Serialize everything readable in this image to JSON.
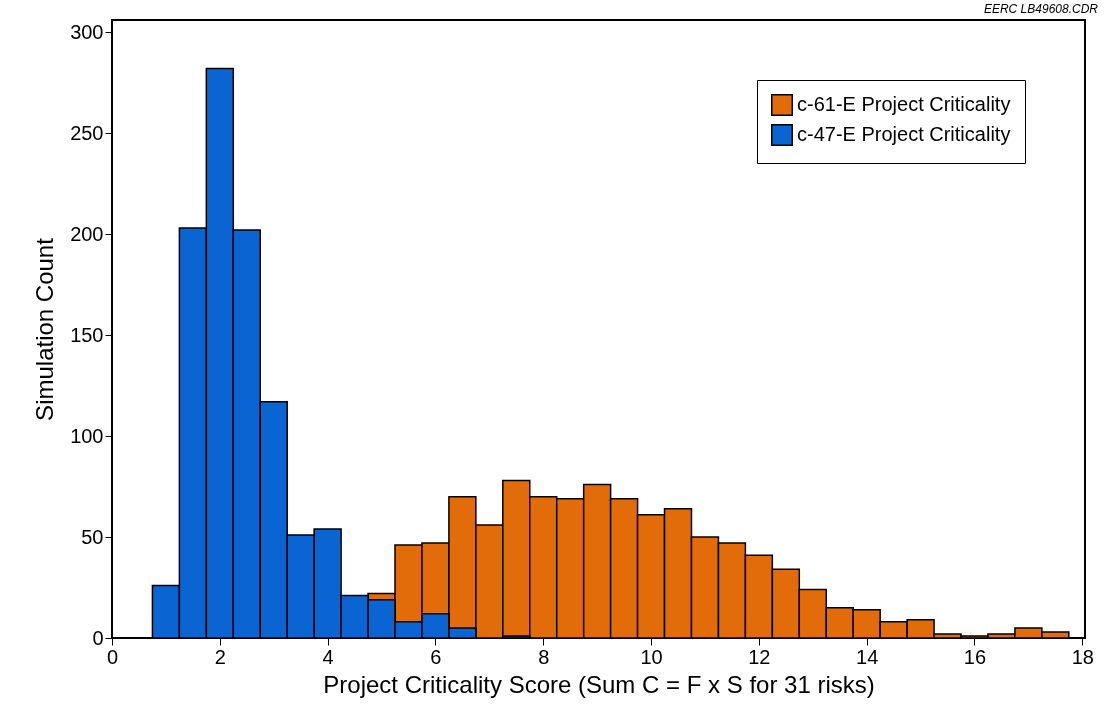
{
  "chart_data": {
    "type": "histogram",
    "xlabel": "Project Criticality Score (Sum C = F x S for 31 risks)",
    "ylabel": "Simulation Count",
    "annotations": [
      "EERC LB49608.CDR"
    ],
    "bins": [
      0.75,
      1.25,
      1.75,
      2.25,
      2.75,
      3.25,
      3.75,
      4.25,
      4.75,
      5.25,
      5.75,
      6.25,
      6.75,
      7.25,
      7.75,
      8.25,
      8.75,
      9.25,
      9.75,
      10.25,
      10.75,
      11.25,
      11.75,
      12.25,
      12.75,
      13.25,
      13.75,
      14.25,
      14.75,
      15.25,
      15.75,
      16.25,
      16.75,
      17.25,
      17.75
    ],
    "series": [
      {
        "name": "c-61-E Project Criticality",
        "color": "#e36c0a",
        "values": [
          null,
          null,
          null,
          null,
          null,
          null,
          null,
          null,
          22,
          46,
          47,
          70,
          56,
          78,
          70,
          69,
          76,
          69,
          61,
          64,
          50,
          47,
          41,
          34,
          24,
          15,
          14,
          8,
          9,
          2,
          1,
          2,
          5,
          3
        ]
      },
      {
        "name": "c-47-E Project Criticality",
        "color": "#0a64d2",
        "values": [
          26,
          203,
          282,
          202,
          117,
          51,
          54,
          21,
          19,
          8,
          12,
          5,
          null,
          1,
          null,
          null,
          null,
          null,
          null,
          null,
          null,
          null,
          null,
          null,
          null,
          null,
          null,
          null,
          null,
          null,
          null,
          null,
          null,
          null
        ]
      }
    ],
    "xlim": [
      0,
      18.05
    ],
    "xticks": [
      0,
      2,
      4,
      6,
      8,
      10,
      12,
      14,
      16,
      18
    ],
    "ylim": [
      0,
      306
    ],
    "yticks": [
      0,
      50,
      100,
      150,
      200,
      250,
      300
    ],
    "grid": false,
    "legend": "top right"
  }
}
